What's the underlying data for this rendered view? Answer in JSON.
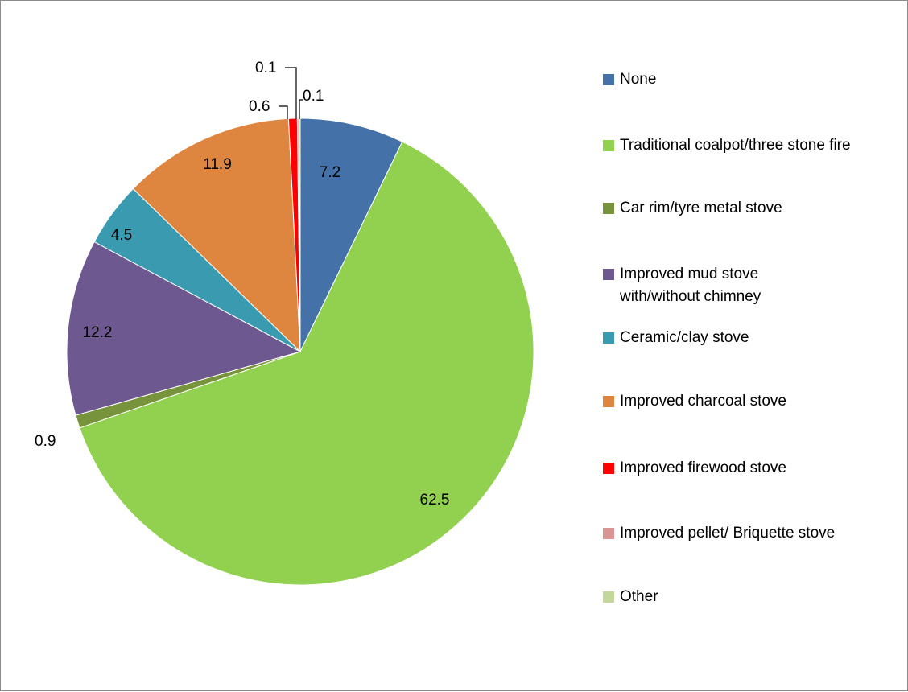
{
  "chart_data": {
    "type": "pie",
    "title": "",
    "series": [
      {
        "name": "None",
        "value": 7.2,
        "label": "7.2",
        "color": "#4472A8"
      },
      {
        "name": "Traditional coalpot/three stone fire",
        "value": 62.5,
        "label": "62.5",
        "color": "#92D050"
      },
      {
        "name": "Car rim/tyre metal stove",
        "value": 0.9,
        "label": "0.9",
        "color": "#77933C"
      },
      {
        "name": "Improved mud stove with/without chimney",
        "value": 12.2,
        "label": "12.2",
        "color": "#6E5890"
      },
      {
        "name": "Ceramic/clay stove",
        "value": 4.5,
        "label": "4.5",
        "color": "#3A9BB0"
      },
      {
        "name": "Improved charcoal stove",
        "value": 11.9,
        "label": "11.9",
        "color": "#DE8640"
      },
      {
        "name": "Improved firewood stove",
        "value": 0.6,
        "label": "0.6",
        "color": "#FF0000"
      },
      {
        "name": "Improved pellet/ Briquette stove",
        "value": 0.1,
        "label": "0.1",
        "color": "#D99594"
      },
      {
        "name": "Other",
        "value": 0.1,
        "label": "0.1",
        "color": "#C3D69B"
      }
    ],
    "legend_position": "right"
  }
}
